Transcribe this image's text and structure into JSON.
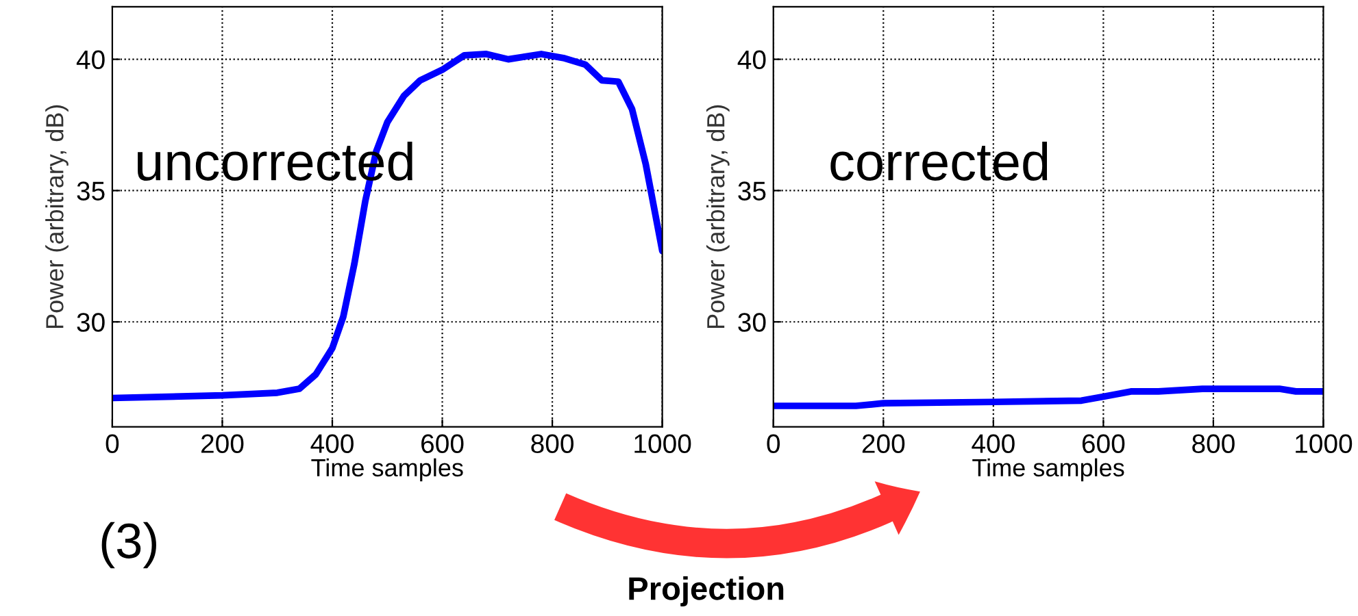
{
  "chart_data": [
    {
      "type": "line",
      "xlabel": "Time samples",
      "ylabel": "Power (arbitrary, dB)",
      "xlim": [
        0,
        1000
      ],
      "ylim": [
        26,
        42
      ],
      "xticks": [
        0,
        200,
        400,
        600,
        800,
        1000
      ],
      "yticks": [
        30,
        35,
        40
      ],
      "grid": true,
      "line_style": "solid",
      "annotations": [
        "uncorrected",
        "(3)"
      ],
      "series": [
        {
          "color": "#0000ff",
          "x": [
            0,
            200,
            300,
            340,
            370,
            400,
            420,
            440,
            460,
            480,
            500,
            530,
            560,
            600,
            640,
            680,
            720,
            780,
            820,
            860,
            890,
            920,
            945,
            970,
            1000
          ],
          "values": [
            27.1,
            27.2,
            27.3,
            27.45,
            28.0,
            29.0,
            30.2,
            32.2,
            34.6,
            36.5,
            37.6,
            38.6,
            39.2,
            39.6,
            40.15,
            40.2,
            40.0,
            40.2,
            40.05,
            39.8,
            39.2,
            39.15,
            38.1,
            36.0,
            32.7
          ]
        }
      ]
    },
    {
      "type": "line",
      "xlabel": "Time samples",
      "ylabel": "Power (arbitrary, dB)",
      "xlim": [
        0,
        1000
      ],
      "ylim": [
        26,
        42
      ],
      "xticks": [
        0,
        200,
        400,
        600,
        800,
        1000
      ],
      "yticks": [
        30,
        35,
        40
      ],
      "grid": true,
      "line_style": "solid",
      "annotations": [
        "corrected",
        "Projection"
      ],
      "series": [
        {
          "color": "#0000ff",
          "x": [
            0,
            150,
            200,
            400,
            560,
            600,
            650,
            700,
            780,
            920,
            950,
            1000
          ],
          "values": [
            26.8,
            26.8,
            26.9,
            26.95,
            27.0,
            27.15,
            27.35,
            27.35,
            27.45,
            27.45,
            27.35,
            27.35
          ]
        }
      ]
    }
  ]
}
